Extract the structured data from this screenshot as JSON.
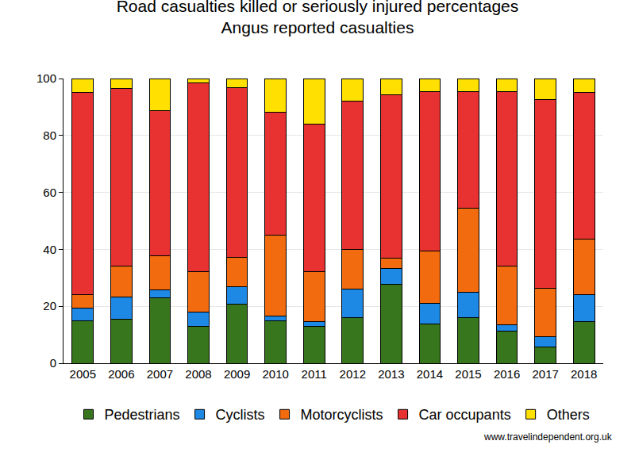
{
  "chart_data": {
    "type": "bar",
    "title": "Road casualties killed or seriously injured percentages",
    "subtitle": "Angus reported casualties",
    "categories": [
      "2005",
      "2006",
      "2007",
      "2008",
      "2009",
      "2010",
      "2011",
      "2012",
      "2013",
      "2014",
      "2015",
      "2016",
      "2017",
      "2018"
    ],
    "series": [
      {
        "name": "Pedestrians",
        "color": "#38761d",
        "values": [
          15,
          15.6,
          23,
          12.9,
          20.8,
          15,
          12.9,
          16,
          27.8,
          13.9,
          15.9,
          11.4,
          5.6,
          14.5
        ]
      },
      {
        "name": "Cyclists",
        "color": "#1e88e5",
        "values": [
          4.5,
          7.7,
          2.7,
          5,
          6.1,
          1.7,
          1.6,
          10,
          5.5,
          7,
          9.1,
          2.2,
          3.7,
          9.7
        ]
      },
      {
        "name": "Motorcyclists",
        "color": "#f26b0f",
        "values": [
          4.5,
          10.9,
          12.1,
          14.2,
          10.4,
          28.3,
          17.8,
          14,
          3.7,
          18.6,
          29.5,
          20.4,
          17.1,
          19.4
        ]
      },
      {
        "name": "Car occupants",
        "color": "#e83232",
        "values": [
          71,
          62.3,
          51,
          66.4,
          59.6,
          43.3,
          51.6,
          52,
          57.4,
          55.8,
          41,
          61.5,
          66.1,
          51.6
        ]
      },
      {
        "name": "Others",
        "color": "#ffe000",
        "values": [
          5,
          3.5,
          11.2,
          1.5,
          3.1,
          11.7,
          16.1,
          8,
          5.6,
          4.7,
          4.5,
          4.5,
          7.5,
          4.8
        ]
      }
    ],
    "stacked": true,
    "ylim": [
      0,
      100
    ],
    "yticks": [
      0,
      20,
      40,
      60,
      80,
      100
    ],
    "grid": true,
    "legend": "bottom",
    "annotations": [
      "www.travelindependent.org.uk"
    ]
  }
}
